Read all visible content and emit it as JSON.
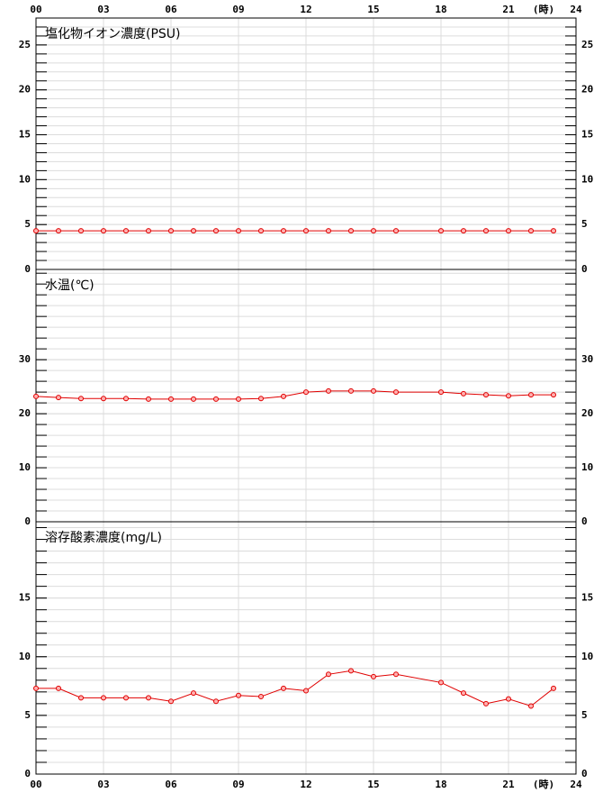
{
  "chart_data": [
    {
      "type": "line",
      "title": "塩化物イオン濃度(PSU)",
      "x_label": "(時)",
      "xlim": [
        0,
        24
      ],
      "xticks": [
        {
          "value": 0,
          "label": "00"
        },
        {
          "value": 3,
          "label": "03"
        },
        {
          "value": 6,
          "label": "06"
        },
        {
          "value": 9,
          "label": "09"
        },
        12,
        15,
        18,
        21,
        24
      ],
      "ylim": [
        0,
        28
      ],
      "yticks": [
        0,
        5,
        10,
        15,
        20,
        25
      ],
      "minor_tick_step": 1,
      "grid": true,
      "series": [
        {
          "color": "#e00000",
          "x": [
            0,
            1,
            2,
            3,
            4,
            5,
            6,
            7,
            8,
            9,
            10,
            11,
            12,
            13,
            14,
            15,
            16,
            18,
            19,
            20,
            21,
            22,
            23
          ],
          "values": [
            4.3,
            4.3,
            4.3,
            4.3,
            4.3,
            4.3,
            4.3,
            4.3,
            4.3,
            4.3,
            4.3,
            4.3,
            4.3,
            4.3,
            4.3,
            4.3,
            4.3,
            4.3,
            4.3,
            4.3,
            4.3,
            4.3,
            4.3
          ]
        }
      ]
    },
    {
      "type": "line",
      "title": "水温(℃)",
      "xlim": [
        0,
        24
      ],
      "xticks": [
        0,
        3,
        6,
        9,
        12,
        15,
        18,
        21,
        24
      ],
      "ylim": [
        0,
        46.7
      ],
      "yticks": [
        0,
        10,
        20,
        30
      ],
      "minor_tick_step": 2,
      "grid": true,
      "series": [
        {
          "color": "#e00000",
          "x": [
            0,
            1,
            2,
            3,
            4,
            5,
            6,
            7,
            8,
            9,
            10,
            11,
            12,
            13,
            14,
            15,
            16,
            18,
            19,
            20,
            21,
            22,
            23
          ],
          "values": [
            23.2,
            23.0,
            22.8,
            22.8,
            22.8,
            22.7,
            22.7,
            22.7,
            22.7,
            22.7,
            22.8,
            23.2,
            24.0,
            24.2,
            24.2,
            24.2,
            24.0,
            24.0,
            23.7,
            23.5,
            23.3,
            23.5,
            23.5
          ]
        }
      ]
    },
    {
      "type": "line",
      "title": "溶存酸素濃度(mg/L)",
      "x_label": "(時)",
      "xlim": [
        0,
        24
      ],
      "xticks": [
        {
          "value": 0,
          "label": "00"
        },
        {
          "value": 3,
          "label": "03"
        },
        {
          "value": 6,
          "label": "06"
        },
        {
          "value": 9,
          "label": "09"
        },
        12,
        15,
        18,
        21,
        24
      ],
      "ylim": [
        0,
        21.5
      ],
      "yticks": [
        0,
        5,
        10,
        15
      ],
      "minor_tick_step": 1,
      "grid": true,
      "series": [
        {
          "color": "#e00000",
          "x": [
            0,
            1,
            2,
            3,
            4,
            5,
            6,
            7,
            8,
            9,
            10,
            11,
            12,
            13,
            14,
            15,
            16,
            18,
            19,
            20,
            21,
            22,
            23
          ],
          "values": [
            7.3,
            7.3,
            6.5,
            6.5,
            6.5,
            6.5,
            6.2,
            6.9,
            6.2,
            6.7,
            6.6,
            7.3,
            7.1,
            8.5,
            8.8,
            8.3,
            8.5,
            7.8,
            6.9,
            6.0,
            6.4,
            5.8,
            7.3
          ]
        }
      ]
    }
  ]
}
